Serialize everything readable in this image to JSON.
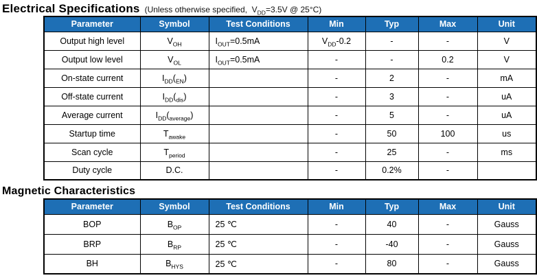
{
  "accent_color": "#1E6FB5",
  "electrical": {
    "title": "Electrical Specifications",
    "subtitle": [
      {
        "t": "(Unless otherwise specified,  V"
      },
      {
        "s": "DD"
      },
      {
        "t": "=3.5V @ 25°C)"
      }
    ],
    "table": {
      "headers": [
        "Parameter",
        "Symbol",
        "Test Conditions",
        "Min",
        "Typ",
        "Max",
        "Unit"
      ],
      "rows": [
        [
          [
            {
              "t": "Output high level"
            }
          ],
          [
            {
              "t": "V"
            },
            {
              "s": "OH"
            }
          ],
          [
            {
              "t": "I"
            },
            {
              "s": "OUT"
            },
            {
              "t": "=0.5mA"
            }
          ],
          [
            {
              "t": "V"
            },
            {
              "s": "DD"
            },
            {
              "t": "-0.2"
            }
          ],
          [
            {
              "t": "-"
            }
          ],
          [
            {
              "t": "-"
            }
          ],
          [
            {
              "t": "V"
            }
          ]
        ],
        [
          [
            {
              "t": "Output low level"
            }
          ],
          [
            {
              "t": "V"
            },
            {
              "s": "OL"
            }
          ],
          [
            {
              "t": "I"
            },
            {
              "s": "OUT"
            },
            {
              "t": "=0.5mA"
            }
          ],
          [
            {
              "t": "-"
            }
          ],
          [
            {
              "t": "-"
            }
          ],
          [
            {
              "t": "0.2"
            }
          ],
          [
            {
              "t": "V"
            }
          ]
        ],
        [
          [
            {
              "t": "On-state current"
            }
          ],
          [
            {
              "t": "I"
            },
            {
              "s": "DD"
            },
            {
              "t": "("
            },
            {
              "s": "EN"
            },
            {
              "t": ")"
            }
          ],
          [],
          [
            {
              "t": "-"
            }
          ],
          [
            {
              "t": "2"
            }
          ],
          [
            {
              "t": "-"
            }
          ],
          [
            {
              "t": "mA"
            }
          ]
        ],
        [
          [
            {
              "t": "Off-state current"
            }
          ],
          [
            {
              "t": "I"
            },
            {
              "s": "DD"
            },
            {
              "t": "("
            },
            {
              "s": "dis"
            },
            {
              "t": ")"
            }
          ],
          [],
          [
            {
              "t": "-"
            }
          ],
          [
            {
              "t": "3"
            }
          ],
          [
            {
              "t": "-"
            }
          ],
          [
            {
              "t": "uA"
            }
          ]
        ],
        [
          [
            {
              "t": "Average current"
            }
          ],
          [
            {
              "t": "I"
            },
            {
              "s": "DD"
            },
            {
              "t": "("
            },
            {
              "s": "average"
            },
            {
              "t": ")"
            }
          ],
          [],
          [
            {
              "t": "-"
            }
          ],
          [
            {
              "t": "5"
            }
          ],
          [
            {
              "t": "-"
            }
          ],
          [
            {
              "t": "uA"
            }
          ]
        ],
        [
          [
            {
              "t": "Startup time"
            }
          ],
          [
            {
              "t": "T"
            },
            {
              "s": "awake"
            }
          ],
          [],
          [
            {
              "t": "-"
            }
          ],
          [
            {
              "t": "50"
            }
          ],
          [
            {
              "t": "100"
            }
          ],
          [
            {
              "t": "us"
            }
          ]
        ],
        [
          [
            {
              "t": "Scan cycle"
            }
          ],
          [
            {
              "t": "T"
            },
            {
              "s": "period"
            }
          ],
          [],
          [
            {
              "t": "-"
            }
          ],
          [
            {
              "t": "25"
            }
          ],
          [
            {
              "t": "-"
            }
          ],
          [
            {
              "t": "ms"
            }
          ]
        ],
        [
          [
            {
              "t": "Duty cycle"
            }
          ],
          [
            {
              "t": "D.C."
            }
          ],
          [],
          [
            {
              "t": "-"
            }
          ],
          [
            {
              "t": "0.2%"
            }
          ],
          [
            {
              "t": "-"
            }
          ],
          []
        ]
      ]
    }
  },
  "magnetic": {
    "title": "Magnetic Characteristics",
    "table": {
      "headers": [
        "Parameter",
        "Symbol",
        "Test Conditions",
        "Min",
        "Typ",
        "Max",
        "Unit"
      ],
      "rows": [
        [
          [
            {
              "t": "BOP"
            }
          ],
          [
            {
              "t": "B"
            },
            {
              "s": "OP"
            }
          ],
          [
            {
              "t": "25 ℃"
            }
          ],
          [
            {
              "t": "-"
            }
          ],
          [
            {
              "t": "40"
            }
          ],
          [
            {
              "t": "-"
            }
          ],
          [
            {
              "t": "Gauss"
            }
          ]
        ],
        [
          [
            {
              "t": "BRP"
            }
          ],
          [
            {
              "t": "B"
            },
            {
              "s": "RP"
            }
          ],
          [
            {
              "t": "25 ℃"
            }
          ],
          [
            {
              "t": "-"
            }
          ],
          [
            {
              "t": "-40"
            }
          ],
          [
            {
              "t": "-"
            }
          ],
          [
            {
              "t": "Gauss"
            }
          ]
        ],
        [
          [
            {
              "t": "BH"
            }
          ],
          [
            {
              "t": "B"
            },
            {
              "s": "HYS"
            }
          ],
          [
            {
              "t": "25 ℃"
            }
          ],
          [
            {
              "t": "-"
            }
          ],
          [
            {
              "t": "80"
            }
          ],
          [
            {
              "t": "-"
            }
          ],
          [
            {
              "t": "Gauss"
            }
          ]
        ]
      ]
    }
  }
}
